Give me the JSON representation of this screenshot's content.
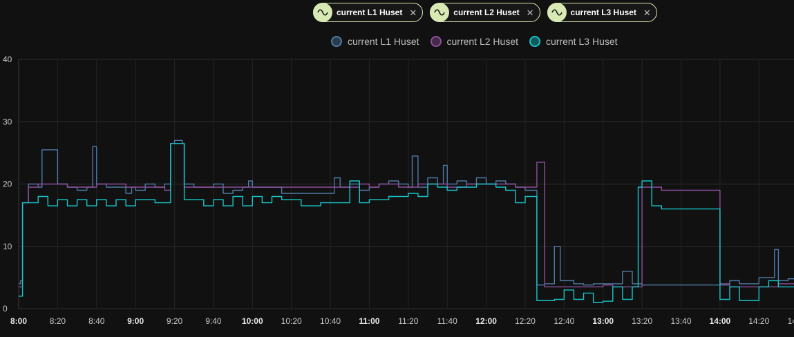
{
  "chips": [
    {
      "label": "current L1 Huset",
      "icon": "sine-wave-icon"
    },
    {
      "label": "current L2 Huset",
      "icon": "sine-wave-icon"
    },
    {
      "label": "current L3 Huset",
      "icon": "sine-wave-icon"
    }
  ],
  "chart_data": {
    "type": "line",
    "title": "",
    "xlabel": "",
    "ylabel": "",
    "ylim": [
      0,
      40
    ],
    "xlim_minutes": [
      0,
      398
    ],
    "grid": true,
    "legend_placement": "top-center",
    "y_ticks": [
      "0",
      "10",
      "20",
      "30",
      "40"
    ],
    "x_ticks": [
      {
        "label": "8:00",
        "min": 0,
        "bold": true
      },
      {
        "label": "8:20",
        "min": 20,
        "bold": false
      },
      {
        "label": "8:40",
        "min": 40,
        "bold": false
      },
      {
        "label": "9:00",
        "min": 60,
        "bold": true
      },
      {
        "label": "9:20",
        "min": 80,
        "bold": false
      },
      {
        "label": "9:40",
        "min": 100,
        "bold": false
      },
      {
        "label": "10:00",
        "min": 120,
        "bold": true
      },
      {
        "label": "10:20",
        "min": 140,
        "bold": false
      },
      {
        "label": "10:40",
        "min": 160,
        "bold": false
      },
      {
        "label": "11:00",
        "min": 180,
        "bold": true
      },
      {
        "label": "11:20",
        "min": 200,
        "bold": false
      },
      {
        "label": "11:40",
        "min": 220,
        "bold": false
      },
      {
        "label": "12:00",
        "min": 240,
        "bold": true
      },
      {
        "label": "12:20",
        "min": 260,
        "bold": false
      },
      {
        "label": "12:40",
        "min": 280,
        "bold": false
      },
      {
        "label": "13:00",
        "min": 300,
        "bold": true
      },
      {
        "label": "13:20",
        "min": 320,
        "bold": false
      },
      {
        "label": "13:40",
        "min": 340,
        "bold": false
      },
      {
        "label": "14:00",
        "min": 360,
        "bold": true
      },
      {
        "label": "14:20",
        "min": 380,
        "bold": false
      },
      {
        "label": "14:40",
        "min": 400,
        "bold": false
      }
    ],
    "x_unit": "minutes after 8:00",
    "series": [
      {
        "name": "current L1 Huset",
        "color": "#4f7aa6",
        "x": [
          0,
          1,
          2,
          5,
          10,
          12,
          20,
          25,
          30,
          35,
          38,
          40,
          45,
          50,
          55,
          58,
          60,
          65,
          70,
          75,
          78,
          80,
          84,
          85,
          90,
          95,
          100,
          105,
          110,
          115,
          118,
          120,
          125,
          130,
          135,
          140,
          145,
          150,
          155,
          160,
          162,
          165,
          170,
          175,
          178,
          180,
          185,
          190,
          195,
          200,
          202,
          205,
          210,
          215,
          218,
          220,
          225,
          230,
          235,
          238,
          240,
          245,
          250,
          255,
          258,
          260,
          266,
          270,
          275,
          278,
          280,
          285,
          290,
          295,
          300,
          305,
          310,
          315,
          318,
          320,
          325,
          330,
          335,
          340,
          345,
          350,
          355,
          360,
          365,
          370,
          375,
          380,
          385,
          388,
          390,
          395,
          398
        ],
        "y": [
          4,
          4.5,
          17,
          20,
          19.5,
          25.5,
          20,
          19.5,
          19,
          19.5,
          26,
          20,
          19.5,
          19.5,
          18.5,
          19.5,
          19,
          20,
          19.5,
          20,
          26.5,
          27,
          26.5,
          20,
          19.5,
          19.5,
          20,
          18.5,
          19,
          19.5,
          20.5,
          19.5,
          19.5,
          19.5,
          18.5,
          18.5,
          18.5,
          18.5,
          18.5,
          18.5,
          21,
          19.5,
          20,
          19,
          19,
          19.5,
          20,
          20.5,
          20,
          19.5,
          24.5,
          19.5,
          21,
          20,
          23,
          20,
          20.5,
          20,
          21,
          21,
          20,
          20.5,
          20,
          19.5,
          19.5,
          19,
          3.8,
          4,
          10,
          4.5,
          4.5,
          4,
          3.8,
          4,
          4,
          4,
          6,
          4,
          4,
          3.8,
          3.8,
          3.8,
          3.8,
          3.8,
          3.8,
          3.8,
          3.8,
          3.8,
          4.5,
          4,
          4,
          5,
          5,
          9.5,
          4.5,
          4.8,
          4.8
        ]
      },
      {
        "name": "current L2 Huset",
        "color": "#8e4f9c",
        "x": [
          0,
          2,
          5,
          10,
          20,
          25,
          30,
          35,
          40,
          45,
          50,
          55,
          60,
          65,
          70,
          75,
          78,
          80,
          84,
          85,
          90,
          95,
          100,
          105,
          110,
          115,
          120,
          125,
          130,
          135,
          140,
          145,
          150,
          155,
          160,
          165,
          170,
          175,
          180,
          185,
          190,
          195,
          200,
          205,
          210,
          215,
          220,
          225,
          230,
          235,
          240,
          245,
          250,
          255,
          260,
          265,
          266,
          270,
          275,
          280,
          285,
          290,
          295,
          300,
          305,
          310,
          315,
          318,
          320,
          325,
          330,
          335,
          340,
          345,
          350,
          355,
          360,
          365,
          370,
          375,
          380,
          385,
          390,
          395,
          398
        ],
        "y": [
          3.5,
          17,
          19.5,
          20,
          20,
          19.5,
          19.5,
          19.5,
          20,
          20,
          20,
          19.5,
          19.5,
          19.5,
          19.5,
          19,
          26.5,
          26.5,
          26.5,
          19.5,
          19.5,
          19.5,
          19.5,
          19.5,
          19.5,
          19.5,
          19.5,
          19.5,
          19.5,
          19.5,
          19.5,
          19.5,
          19.5,
          19.5,
          19.5,
          19.5,
          19.5,
          20,
          19.5,
          20,
          20,
          19.5,
          19.5,
          20,
          20,
          20,
          19.5,
          19.5,
          20,
          20,
          20,
          20,
          20,
          19.5,
          19.5,
          19.5,
          23.5,
          3.5,
          3.5,
          3.5,
          3.5,
          3.5,
          3.5,
          3.8,
          3.5,
          3.5,
          3.5,
          3.5,
          19.5,
          19.5,
          19,
          19,
          19,
          19,
          19,
          19,
          4,
          3.5,
          3.5,
          3.5,
          3.5,
          3.5,
          4,
          4,
          4
        ]
      },
      {
        "name": "current L3 Huset",
        "color": "#17c5c9",
        "x": [
          0,
          2,
          5,
          10,
          15,
          20,
          25,
          30,
          35,
          40,
          45,
          50,
          55,
          60,
          65,
          70,
          75,
          78,
          80,
          84,
          85,
          90,
          95,
          100,
          105,
          110,
          115,
          120,
          125,
          130,
          135,
          140,
          145,
          150,
          155,
          160,
          165,
          170,
          175,
          180,
          185,
          190,
          195,
          200,
          205,
          210,
          215,
          220,
          225,
          230,
          235,
          240,
          245,
          250,
          255,
          260,
          266,
          270,
          275,
          280,
          285,
          290,
          295,
          300,
          305,
          310,
          315,
          318,
          320,
          325,
          330,
          335,
          340,
          345,
          350,
          355,
          360,
          365,
          370,
          375,
          380,
          385,
          390,
          395,
          398
        ],
        "y": [
          2,
          17,
          17,
          18,
          16.5,
          17.5,
          16.5,
          17.5,
          16.5,
          17.5,
          16.5,
          17.5,
          16.5,
          17.5,
          17.5,
          17,
          17,
          26.5,
          26.5,
          26.5,
          17.5,
          17.5,
          16.5,
          17.5,
          16.5,
          18,
          16.5,
          18,
          17,
          18,
          17.5,
          17.5,
          16.5,
          16.5,
          17,
          17,
          17,
          20.5,
          17,
          17.5,
          17.5,
          18,
          18,
          18.5,
          18,
          20,
          19.5,
          19,
          19.5,
          19.5,
          20,
          20,
          19.5,
          19,
          17,
          18,
          1.3,
          1.3,
          1.5,
          3,
          1.5,
          2.5,
          1,
          1.2,
          3.5,
          1.5,
          3.5,
          19.5,
          20.5,
          16.5,
          16,
          16,
          16,
          16,
          16,
          16,
          1.5,
          3.5,
          1.3,
          1.3,
          3.5,
          4.5,
          3.5,
          3.5,
          3.5
        ]
      }
    ]
  }
}
